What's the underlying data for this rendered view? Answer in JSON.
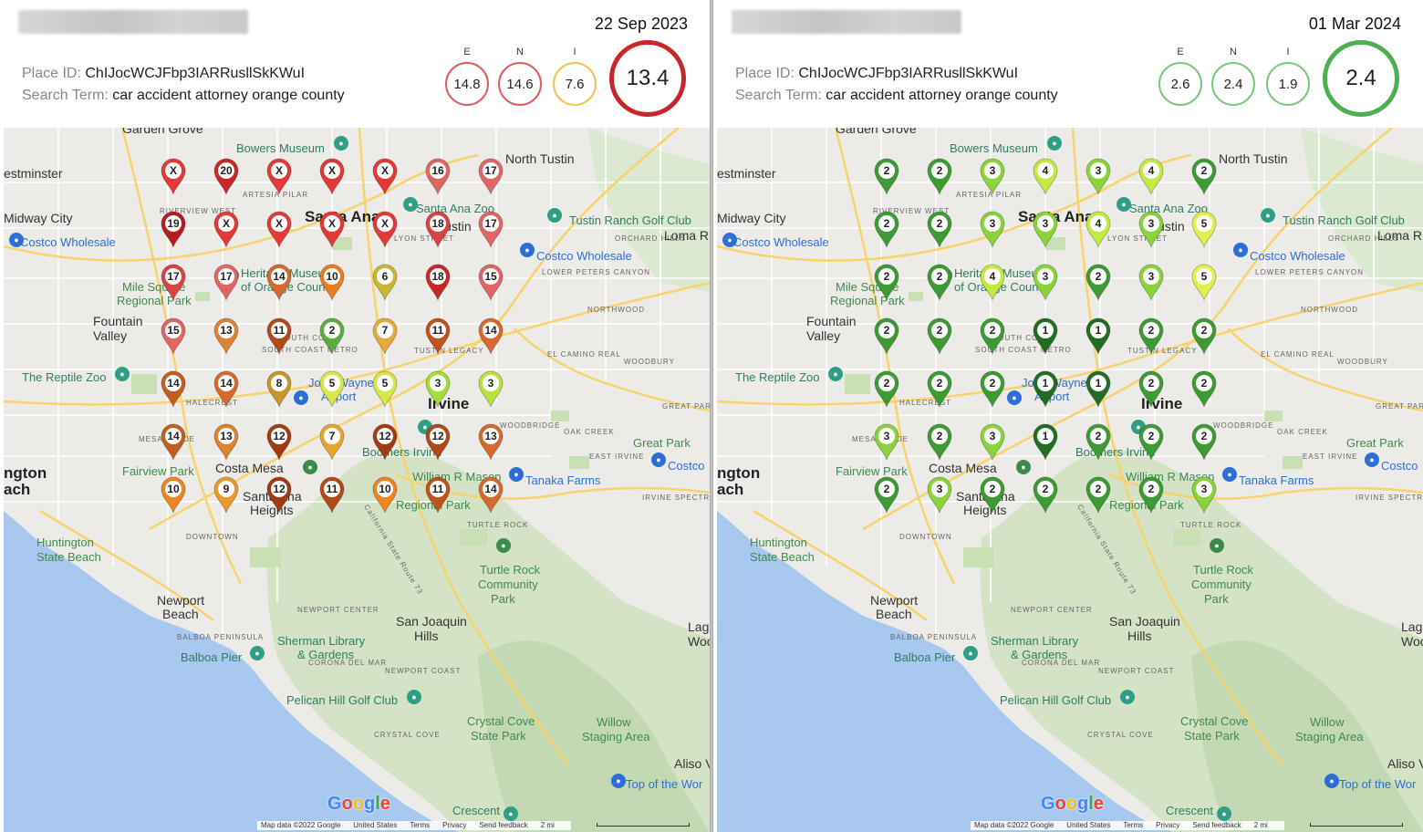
{
  "panels": [
    {
      "side": "left",
      "date": "22 Sep 2023",
      "place_id_label": "Place ID:",
      "place_id": "ChIJocWCJFbp3IARRusllSkKWuI",
      "search_label": "Search Term:",
      "search_term": "car accident attorney orange county",
      "scores": [
        {
          "letter": "E",
          "value": "14.8",
          "color": "#e15a5f"
        },
        {
          "letter": "N",
          "value": "14.6",
          "color": "#e15a5f"
        },
        {
          "letter": "I",
          "value": "7.6",
          "color": "#f0c64a"
        }
      ],
      "overall": {
        "value": "13.4",
        "color": "#c62828"
      },
      "pins": [
        [
          "X",
          "#e53935"
        ],
        [
          "20",
          "#c62828"
        ],
        [
          "X",
          "#e53935"
        ],
        [
          "X",
          "#e53935"
        ],
        [
          "X",
          "#e53935"
        ],
        [
          "16",
          "#e06666"
        ],
        [
          "17",
          "#e06666"
        ],
        [
          "19",
          "#b71c1c"
        ],
        [
          "X",
          "#e53935"
        ],
        [
          "X",
          "#e53935"
        ],
        [
          "X",
          "#e53935"
        ],
        [
          "X",
          "#e53935"
        ],
        [
          "18",
          "#d84343"
        ],
        [
          "17",
          "#e06666"
        ],
        [
          "17",
          "#d84343"
        ],
        [
          "17",
          "#e06666"
        ],
        [
          "14",
          "#d8692e"
        ],
        [
          "10",
          "#e97c1f"
        ],
        [
          "6",
          "#c9b836"
        ],
        [
          "18",
          "#c62828"
        ],
        [
          "15",
          "#e06666"
        ],
        [
          "15",
          "#e06666"
        ],
        [
          "13",
          "#dd8433"
        ],
        [
          "11",
          "#b34a16"
        ],
        [
          "2",
          "#5aae3e"
        ],
        [
          "7",
          "#e6a93a"
        ],
        [
          "11",
          "#c0531b"
        ],
        [
          "14",
          "#d8692e"
        ],
        [
          "14",
          "#c45d20"
        ],
        [
          "14",
          "#d8692e"
        ],
        [
          "8",
          "#c8962a"
        ],
        [
          "5",
          "#d6e848"
        ],
        [
          "5",
          "#d6e848"
        ],
        [
          "3",
          "#a6dc3a"
        ],
        [
          "3",
          "#b9e13f"
        ],
        [
          "14",
          "#c45d20"
        ],
        [
          "13",
          "#dd8433"
        ],
        [
          "12",
          "#a23a12"
        ],
        [
          "7",
          "#eaa32c"
        ],
        [
          "12",
          "#a23a12"
        ],
        [
          "12",
          "#b3481a"
        ],
        [
          "13",
          "#d8692e"
        ],
        [
          "10",
          "#ef8420"
        ],
        [
          "9",
          "#e89a2f"
        ],
        [
          "12",
          "#a23a12"
        ],
        [
          "11",
          "#b34a16"
        ],
        [
          "10",
          "#ef8420"
        ],
        [
          "11",
          "#c0531b"
        ],
        [
          "14",
          "#d8692e"
        ]
      ]
    },
    {
      "side": "right",
      "date": "01 Mar 2024",
      "place_id_label": "Place ID:",
      "place_id": "ChIJocWCJFbp3IARRusllSkKWuI",
      "search_label": "Search Term:",
      "search_term": "car accident attorney orange county",
      "scores": [
        {
          "letter": "E",
          "value": "2.6",
          "color": "#7ec87e"
        },
        {
          "letter": "N",
          "value": "2.4",
          "color": "#7ec87e"
        },
        {
          "letter": "I",
          "value": "1.9",
          "color": "#7ec87e"
        }
      ],
      "overall": {
        "value": "2.4",
        "color": "#4caf50"
      },
      "pins": [
        [
          "2",
          "#3d9b33"
        ],
        [
          "2",
          "#3d9b33"
        ],
        [
          "3",
          "#8ad33a"
        ],
        [
          "4",
          "#c2ea40"
        ],
        [
          "3",
          "#8ad33a"
        ],
        [
          "4",
          "#c2ea40"
        ],
        [
          "2",
          "#3d9b33"
        ],
        [
          "2",
          "#3d9b33"
        ],
        [
          "2",
          "#3d9b33"
        ],
        [
          "3",
          "#8ad33a"
        ],
        [
          "3",
          "#8ad33a"
        ],
        [
          "4",
          "#c2ea40"
        ],
        [
          "3",
          "#8ad33a"
        ],
        [
          "5",
          "#e2f04a"
        ],
        [
          "2",
          "#3d9b33"
        ],
        [
          "2",
          "#3d9b33"
        ],
        [
          "4",
          "#c2ea40"
        ],
        [
          "3",
          "#8ad33a"
        ],
        [
          "2",
          "#3d9b33"
        ],
        [
          "3",
          "#8ad33a"
        ],
        [
          "5",
          "#e2f04a"
        ],
        [
          "2",
          "#3d9b33"
        ],
        [
          "2",
          "#3d9b33"
        ],
        [
          "2",
          "#3d9b33"
        ],
        [
          "1",
          "#1f6e22"
        ],
        [
          "1",
          "#1f6e22"
        ],
        [
          "2",
          "#3d9b33"
        ],
        [
          "2",
          "#3d9b33"
        ],
        [
          "2",
          "#3d9b33"
        ],
        [
          "2",
          "#3d9b33"
        ],
        [
          "2",
          "#3d9b33"
        ],
        [
          "1",
          "#1f6e22"
        ],
        [
          "1",
          "#1f6e22"
        ],
        [
          "2",
          "#3d9b33"
        ],
        [
          "2",
          "#3d9b33"
        ],
        [
          "3",
          "#8ad33a"
        ],
        [
          "2",
          "#3d9b33"
        ],
        [
          "3",
          "#8ad33a"
        ],
        [
          "1",
          "#1f6e22"
        ],
        [
          "2",
          "#3d9b33"
        ],
        [
          "2",
          "#3d9b33"
        ],
        [
          "2",
          "#3d9b33"
        ],
        [
          "2",
          "#3d9b33"
        ],
        [
          "3",
          "#8ad33a"
        ],
        [
          "2",
          "#3d9b33"
        ],
        [
          "2",
          "#3d9b33"
        ],
        [
          "2",
          "#3d9b33"
        ],
        [
          "2",
          "#3d9b33"
        ],
        [
          "3",
          "#8ad33a"
        ]
      ]
    }
  ],
  "map_labels": [
    {
      "t": "Garden Grove",
      "c": "city"
    },
    {
      "t": "Bowers Museum",
      "c": "poi"
    },
    {
      "t": "estminster",
      "c": "city"
    },
    {
      "t": "North Tustin",
      "c": "city"
    },
    {
      "t": "ARTESIA PILAR",
      "c": "small"
    },
    {
      "t": "Midway City",
      "c": "city"
    },
    {
      "t": "RIVERVIEW WEST",
      "c": "small"
    },
    {
      "t": "Santa Ana",
      "c": "big"
    },
    {
      "t": "Santa Ana Zoo",
      "c": "poi"
    },
    {
      "t": "Tustin",
      "c": "city"
    },
    {
      "t": "Tustin Ranch Golf Club",
      "c": "poi"
    },
    {
      "t": "Costco Wholesale",
      "c": "poi-blue"
    },
    {
      "t": "LYON STREET",
      "c": "small"
    },
    {
      "t": "ORCHARD HILLS",
      "c": "small"
    },
    {
      "t": "Loma R",
      "c": "city"
    },
    {
      "t": "Costco Wholesale",
      "c": "poi-blue"
    },
    {
      "t": "Heritage Museum",
      "c": "poi"
    },
    {
      "t": "of Orange County",
      "c": "poi"
    },
    {
      "t": "LOWER PETERS CANYON",
      "c": "small"
    },
    {
      "t": "Mile Square",
      "c": "park"
    },
    {
      "t": "Regional Park",
      "c": "park"
    },
    {
      "t": "Fountain",
      "c": "city"
    },
    {
      "t": "Valley",
      "c": "city"
    },
    {
      "t": "NORTHWOOD",
      "c": "small"
    },
    {
      "t": "SOUTH COAST",
      "c": "small"
    },
    {
      "t": "SOUTH COAST METRO",
      "c": "small"
    },
    {
      "t": "TUSTIN LEGACY",
      "c": "small"
    },
    {
      "t": "EL CAMINO REAL",
      "c": "small"
    },
    {
      "t": "WOODBURY",
      "c": "small"
    },
    {
      "t": "The Reptile Zoo",
      "c": "poi"
    },
    {
      "t": "John Wayne",
      "c": "poi-blue"
    },
    {
      "t": "Airport",
      "c": "poi-blue"
    },
    {
      "t": "Irvine",
      "c": "big"
    },
    {
      "t": "HALECREST",
      "c": "small"
    },
    {
      "t": "WOODBRIDGE",
      "c": "small"
    },
    {
      "t": "OAK CREEK",
      "c": "small"
    },
    {
      "t": "GREAT PARK",
      "c": "small"
    },
    {
      "t": "Great Park",
      "c": "park"
    },
    {
      "t": "MESA VERDE",
      "c": "small"
    },
    {
      "t": "Boomers Irvine",
      "c": "poi"
    },
    {
      "t": "EAST IRVINE",
      "c": "small"
    },
    {
      "t": "Costco",
      "c": "poi-blue"
    },
    {
      "t": "ngton",
      "c": "big"
    },
    {
      "t": "ach",
      "c": "big"
    },
    {
      "t": "Fairview Park",
      "c": "park"
    },
    {
      "t": "Costa Mesa",
      "c": "city"
    },
    {
      "t": "William R Mason",
      "c": "park"
    },
    {
      "t": "Regional Park",
      "c": "park"
    },
    {
      "t": "Tanaka Farms",
      "c": "poi-blue"
    },
    {
      "t": "Santa Ana",
      "c": "city"
    },
    {
      "t": "Heights",
      "c": "city"
    },
    {
      "t": "IRVINE SPECTRUM CENTER",
      "c": "small"
    },
    {
      "t": "Huntington",
      "c": "park"
    },
    {
      "t": "State Beach",
      "c": "park"
    },
    {
      "t": "DOWNTOWN",
      "c": "small"
    },
    {
      "t": "TURTLE ROCK",
      "c": "small"
    },
    {
      "t": "Turtle Rock",
      "c": "park"
    },
    {
      "t": "Community",
      "c": "park"
    },
    {
      "t": "Park",
      "c": "park"
    },
    {
      "t": "Newport",
      "c": "city"
    },
    {
      "t": "Beach",
      "c": "city"
    },
    {
      "t": "NEWPORT CENTER",
      "c": "small"
    },
    {
      "t": "San Joaquin",
      "c": "city"
    },
    {
      "t": "Hills",
      "c": "city"
    },
    {
      "t": "BALBOA PENINSULA",
      "c": "small"
    },
    {
      "t": "Sherman Library",
      "c": "poi"
    },
    {
      "t": "& Gardens",
      "c": "poi"
    },
    {
      "t": "Balboa Pier",
      "c": "poi"
    },
    {
      "t": "CORONA DEL MAR",
      "c": "small"
    },
    {
      "t": "NEWPORT COAST",
      "c": "small"
    },
    {
      "t": "Lag",
      "c": "city"
    },
    {
      "t": "Woo",
      "c": "city"
    },
    {
      "t": "Pelican Hill Golf Club",
      "c": "poi"
    },
    {
      "t": "Crystal Cove",
      "c": "park"
    },
    {
      "t": "State Park",
      "c": "park"
    },
    {
      "t": "Willow",
      "c": "park"
    },
    {
      "t": "Staging Area",
      "c": "park"
    },
    {
      "t": "CRYSTAL COVE",
      "c": "small"
    },
    {
      "t": "Aliso V",
      "c": "city"
    },
    {
      "t": "Top of the Wor",
      "c": "poi-blue"
    },
    {
      "t": "Crescent",
      "c": "poi"
    },
    {
      "t": "California State Route 73",
      "c": "small"
    }
  ],
  "footer": {
    "google": "Google",
    "items": [
      "Map data ©2022 Google",
      "United States",
      "Terms",
      "Privacy",
      "Send feedback",
      "2 mi"
    ]
  }
}
